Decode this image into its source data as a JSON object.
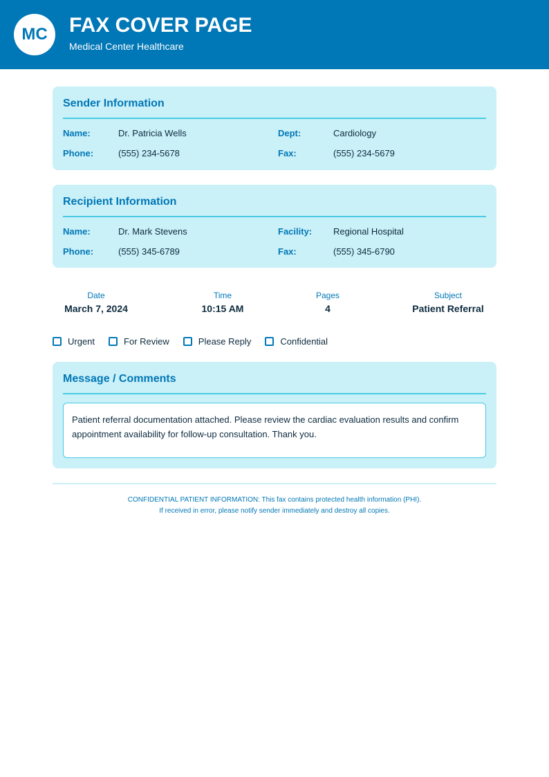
{
  "header": {
    "logo": "MC",
    "title": "FAX COVER PAGE",
    "subtitle": "Medical Center Healthcare"
  },
  "sender": {
    "title": "Sender Information",
    "name_label": "Name:",
    "name": "Dr. Patricia Wells",
    "dept_label": "Dept:",
    "dept": "Cardiology",
    "phone_label": "Phone:",
    "phone": "(555) 234-5678",
    "fax_label": "Fax:",
    "fax": "(555) 234-5679"
  },
  "recipient": {
    "title": "Recipient Information",
    "name_label": "Name:",
    "name": "Dr. Mark Stevens",
    "facility_label": "Facility:",
    "facility": "Regional Hospital",
    "phone_label": "Phone:",
    "phone": "(555) 345-6789",
    "fax_label": "Fax:",
    "fax": "(555) 345-6790"
  },
  "meta": [
    {
      "label": "Date",
      "value": "March 7, 2024"
    },
    {
      "label": "Time",
      "value": "10:15 AM"
    },
    {
      "label": "Pages",
      "value": "4"
    },
    {
      "label": "Subject",
      "value": "Patient Referral"
    }
  ],
  "checkboxes": [
    {
      "label": "Urgent",
      "checked": false
    },
    {
      "label": "For Review",
      "checked": false
    },
    {
      "label": "Please Reply",
      "checked": false
    },
    {
      "label": "Confidential",
      "checked": false
    }
  ],
  "message": {
    "title": "Message / Comments",
    "body": "Patient referral documentation attached. Please review the cardiac evaluation results and confirm appointment availability for follow-up consultation. Thank you."
  },
  "footer": {
    "line1": "CONFIDENTIAL PATIENT INFORMATION: This fax contains protected health information (PHI).",
    "line2": "If received in error, please notify sender immediately and destroy all copies."
  },
  "colors": {
    "primary": "#0077b6",
    "card": "#caf0f8",
    "accent": "#48cae4"
  }
}
